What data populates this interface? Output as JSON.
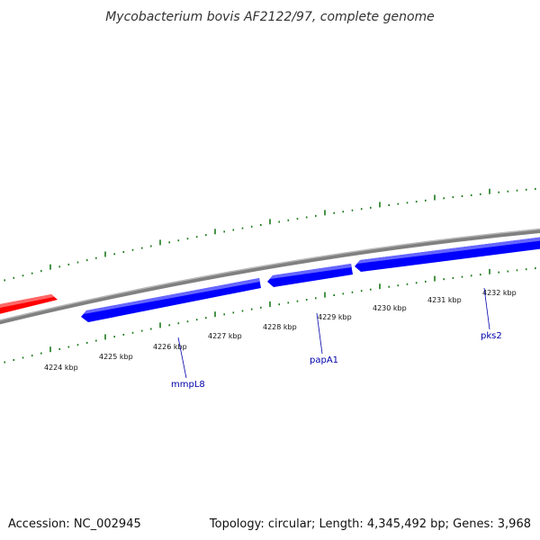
{
  "title": "Mycobacterium bovis AF2122/97, complete genome",
  "accession": "Accession: NC_002945",
  "summary": "Topology: circular; Length: 4,345,492 bp; Genes: 3,968",
  "colors": {
    "forward_gene": "#ff0000",
    "reverse_gene": "#0000ff",
    "backbone": "#808080",
    "ticks": "#1a7a1a",
    "gene_label": "#0000aa"
  },
  "kbp_ticks": [
    "4224 kbp",
    "4225 kbp",
    "4226 kbp",
    "4227 kbp",
    "4228 kbp",
    "4229 kbp",
    "4230 kbp",
    "4231 kbp",
    "4232 kbp"
  ],
  "genes": [
    {
      "label": "mmpL8",
      "strand": "reverse"
    },
    {
      "label": "papA1",
      "strand": "reverse"
    },
    {
      "label": "pks2",
      "strand": "reverse"
    }
  ]
}
